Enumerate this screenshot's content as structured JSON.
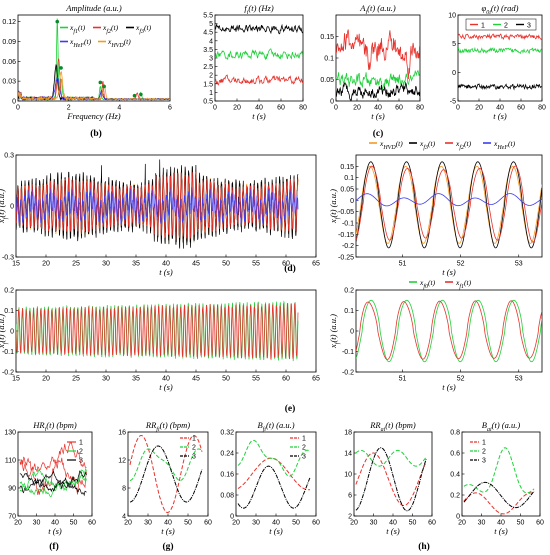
{
  "panel_labels": [
    "(b)",
    "(c)",
    "(d)",
    "(e)",
    "(f)",
    "(g)",
    "(h)"
  ],
  "colors": {
    "red": "#e8322c",
    "green": "#1fd13a",
    "black": "#000000",
    "blue": "#3c3cf0",
    "orange": "#f59a23",
    "darkgreen": "#0a8a2a"
  },
  "chart_data": [
    {
      "id": "amp",
      "type": "line",
      "title": "Amplitude (a.u.)",
      "xlabel": "Frequency (Hz)",
      "ylabel": "",
      "xlim": [
        0,
        6
      ],
      "ylim": [
        0,
        0.13
      ],
      "xticks": [
        0,
        2,
        4,
        6
      ],
      "yticks": [
        0,
        0.03,
        0.06,
        0.09,
        0.12
      ],
      "legend": [
        "x_f1(t)",
        "x_f2(t)",
        "x_f3(t)",
        "x_HeF(t)",
        "x_HVD(t)"
      ],
      "peaks": [
        {
          "x": 1.55,
          "y": 0.12
        },
        {
          "x": 1.7,
          "y": 0.05
        },
        {
          "x": 3.25,
          "y": 0.028
        },
        {
          "x": 3.4,
          "y": 0.022
        },
        {
          "x": 4.6,
          "y": 0.008
        },
        {
          "x": 4.85,
          "y": 0.01
        }
      ]
    },
    {
      "id": "freq",
      "type": "line",
      "title": "f_i(t) (Hz)",
      "xlabel": "t (s)",
      "ylabel": "",
      "xlim": [
        0,
        80
      ],
      "ylim": [
        0.5,
        5.5
      ],
      "xticks": [
        0,
        20,
        40,
        60,
        80
      ],
      "yticks": [
        0.5,
        1,
        1.5,
        2,
        2.5,
        3,
        3.5,
        4,
        4.5,
        5,
        5.5
      ],
      "series": [
        {
          "name": "1",
          "color": "red",
          "mean": 1.7
        },
        {
          "name": "2",
          "color": "green",
          "mean": 3.2
        },
        {
          "name": "3",
          "color": "black",
          "mean": 4.7
        }
      ]
    },
    {
      "id": "ampl",
      "type": "line",
      "title": "A_i(t) (a.u.)",
      "xlabel": "t (s)",
      "ylabel": "",
      "xlim": [
        0,
        80
      ],
      "ylim": [
        0,
        0.2
      ],
      "xticks": [
        0,
        20,
        40,
        60,
        80
      ],
      "yticks": [
        0,
        0.05,
        0.1,
        0.15
      ],
      "series": [
        {
          "name": "1",
          "color": "red",
          "mean": 0.12
        },
        {
          "name": "2",
          "color": "green",
          "mean": 0.045
        },
        {
          "name": "3",
          "color": "black",
          "mean": 0.025
        }
      ]
    },
    {
      "id": "phase",
      "type": "line",
      "title": "φ_0i(t) (rad)",
      "xlabel": "t (s)",
      "ylabel": "",
      "xlim": [
        0,
        80
      ],
      "ylim": [
        -5,
        10
      ],
      "xticks": [
        0,
        20,
        40,
        60,
        80
      ],
      "yticks": [
        -5,
        0,
        5,
        10
      ],
      "legend": [
        "1",
        "2",
        "3"
      ],
      "series": [
        {
          "name": "1",
          "color": "red",
          "mean": 6.2
        },
        {
          "name": "2",
          "color": "green",
          "mean": 3.8
        },
        {
          "name": "3",
          "color": "black",
          "mean": -2.5
        }
      ]
    },
    {
      "id": "d_left",
      "type": "line",
      "title": "",
      "xlabel": "t (s)",
      "ylabel": "x_f(t) (a.u.)",
      "xlim": [
        15,
        65
      ],
      "ylim": [
        -0.3,
        0.3
      ],
      "xticks": [
        15,
        20,
        25,
        30,
        35,
        40,
        45,
        50,
        55,
        60,
        65
      ],
      "yticks": [
        -0.3,
        0,
        0.3
      ],
      "freq_hz": 1.65
    },
    {
      "id": "d_right",
      "type": "line",
      "title": "",
      "xlabel": "t (s)",
      "ylabel": "x_f(t) (a.u.)",
      "xlim": [
        50.2,
        53.4
      ],
      "ylim": [
        -0.25,
        0.2
      ],
      "xticks": [
        51,
        52,
        53
      ],
      "yticks": [
        -0.25,
        -0.2,
        -0.15,
        -0.1,
        -0.05,
        0,
        0.05,
        0.1,
        0.15
      ],
      "legend": [
        "x_HVD(t)",
        "x_f3(t)",
        "x_f2(t)",
        "x_HeF(t)"
      ]
    },
    {
      "id": "e_left",
      "type": "line",
      "title": "",
      "xlabel": "t (s)",
      "ylabel": "x_f(t) (a.u.)",
      "xlim": [
        15,
        65
      ],
      "ylim": [
        -0.2,
        0.2
      ],
      "xticks": [
        15,
        20,
        25,
        30,
        35,
        40,
        45,
        50,
        55,
        60,
        65
      ],
      "yticks": [
        -0.2,
        -0.1,
        0,
        0.1,
        0.2
      ]
    },
    {
      "id": "e_right",
      "type": "line",
      "title": "",
      "xlabel": "t (s)",
      "ylabel": "x_f(t) (a.u.)",
      "xlim": [
        50.2,
        53.4
      ],
      "ylim": [
        -0.2,
        0.2
      ],
      "xticks": [
        51,
        52,
        53
      ],
      "yticks": [
        -0.2,
        -0.1,
        0,
        0.1,
        0.2
      ],
      "legend": [
        "x_f0(t)",
        "x_f1(t)"
      ]
    },
    {
      "id": "hr",
      "type": "line",
      "title": "HR_i(t) (bpm)",
      "xlabel": "t (s)",
      "ylabel": "",
      "xlim": [
        20,
        60
      ],
      "ylim": [
        70,
        130
      ],
      "xticks": [
        20,
        30,
        40,
        50,
        60
      ],
      "yticks": [
        70,
        90,
        110,
        130
      ],
      "legend": [
        "1",
        "2",
        "3"
      ]
    },
    {
      "id": "rr",
      "type": "line",
      "title": "RR_fi(t) (bpm)",
      "xlabel": "t (s)",
      "ylabel": "",
      "xlim": [
        20,
        60
      ],
      "ylim": [
        4,
        16
      ],
      "xticks": [
        20,
        30,
        40,
        50,
        60
      ],
      "yticks": [
        4,
        8,
        12,
        16
      ],
      "legend": [
        "1",
        "2",
        "3"
      ]
    },
    {
      "id": "bf",
      "type": "line",
      "title": "B_fi(t) (a.u.)",
      "xlabel": "t (s)",
      "ylabel": "",
      "xlim": [
        20,
        60
      ],
      "ylim": [
        0,
        0.32
      ],
      "xticks": [
        20,
        30,
        40,
        50,
        60
      ],
      "yticks": [
        0,
        0.08,
        0.16,
        0.24,
        0.32
      ],
      "legend": [
        "1",
        "2",
        "3"
      ]
    },
    {
      "id": "rra",
      "type": "line",
      "title": "RR_ai(t) (bpm)",
      "xlabel": "t (s)",
      "ylabel": "",
      "xlim": [
        20,
        60
      ],
      "ylim": [
        2,
        18
      ],
      "xticks": [
        20,
        30,
        40,
        50,
        60
      ],
      "yticks": [
        2,
        6,
        10,
        14,
        18
      ]
    },
    {
      "id": "ba",
      "type": "line",
      "title": "B_ai(t) (a.u.)",
      "xlabel": "t (s)",
      "ylabel": "",
      "xlim": [
        20,
        60
      ],
      "ylim": [
        0,
        0.8
      ],
      "xticks": [
        20,
        30,
        40,
        50,
        60
      ],
      "yticks": [
        0,
        0.2,
        0.4,
        0.6,
        0.8
      ],
      "legend": [
        "1",
        "2",
        "3"
      ]
    }
  ]
}
